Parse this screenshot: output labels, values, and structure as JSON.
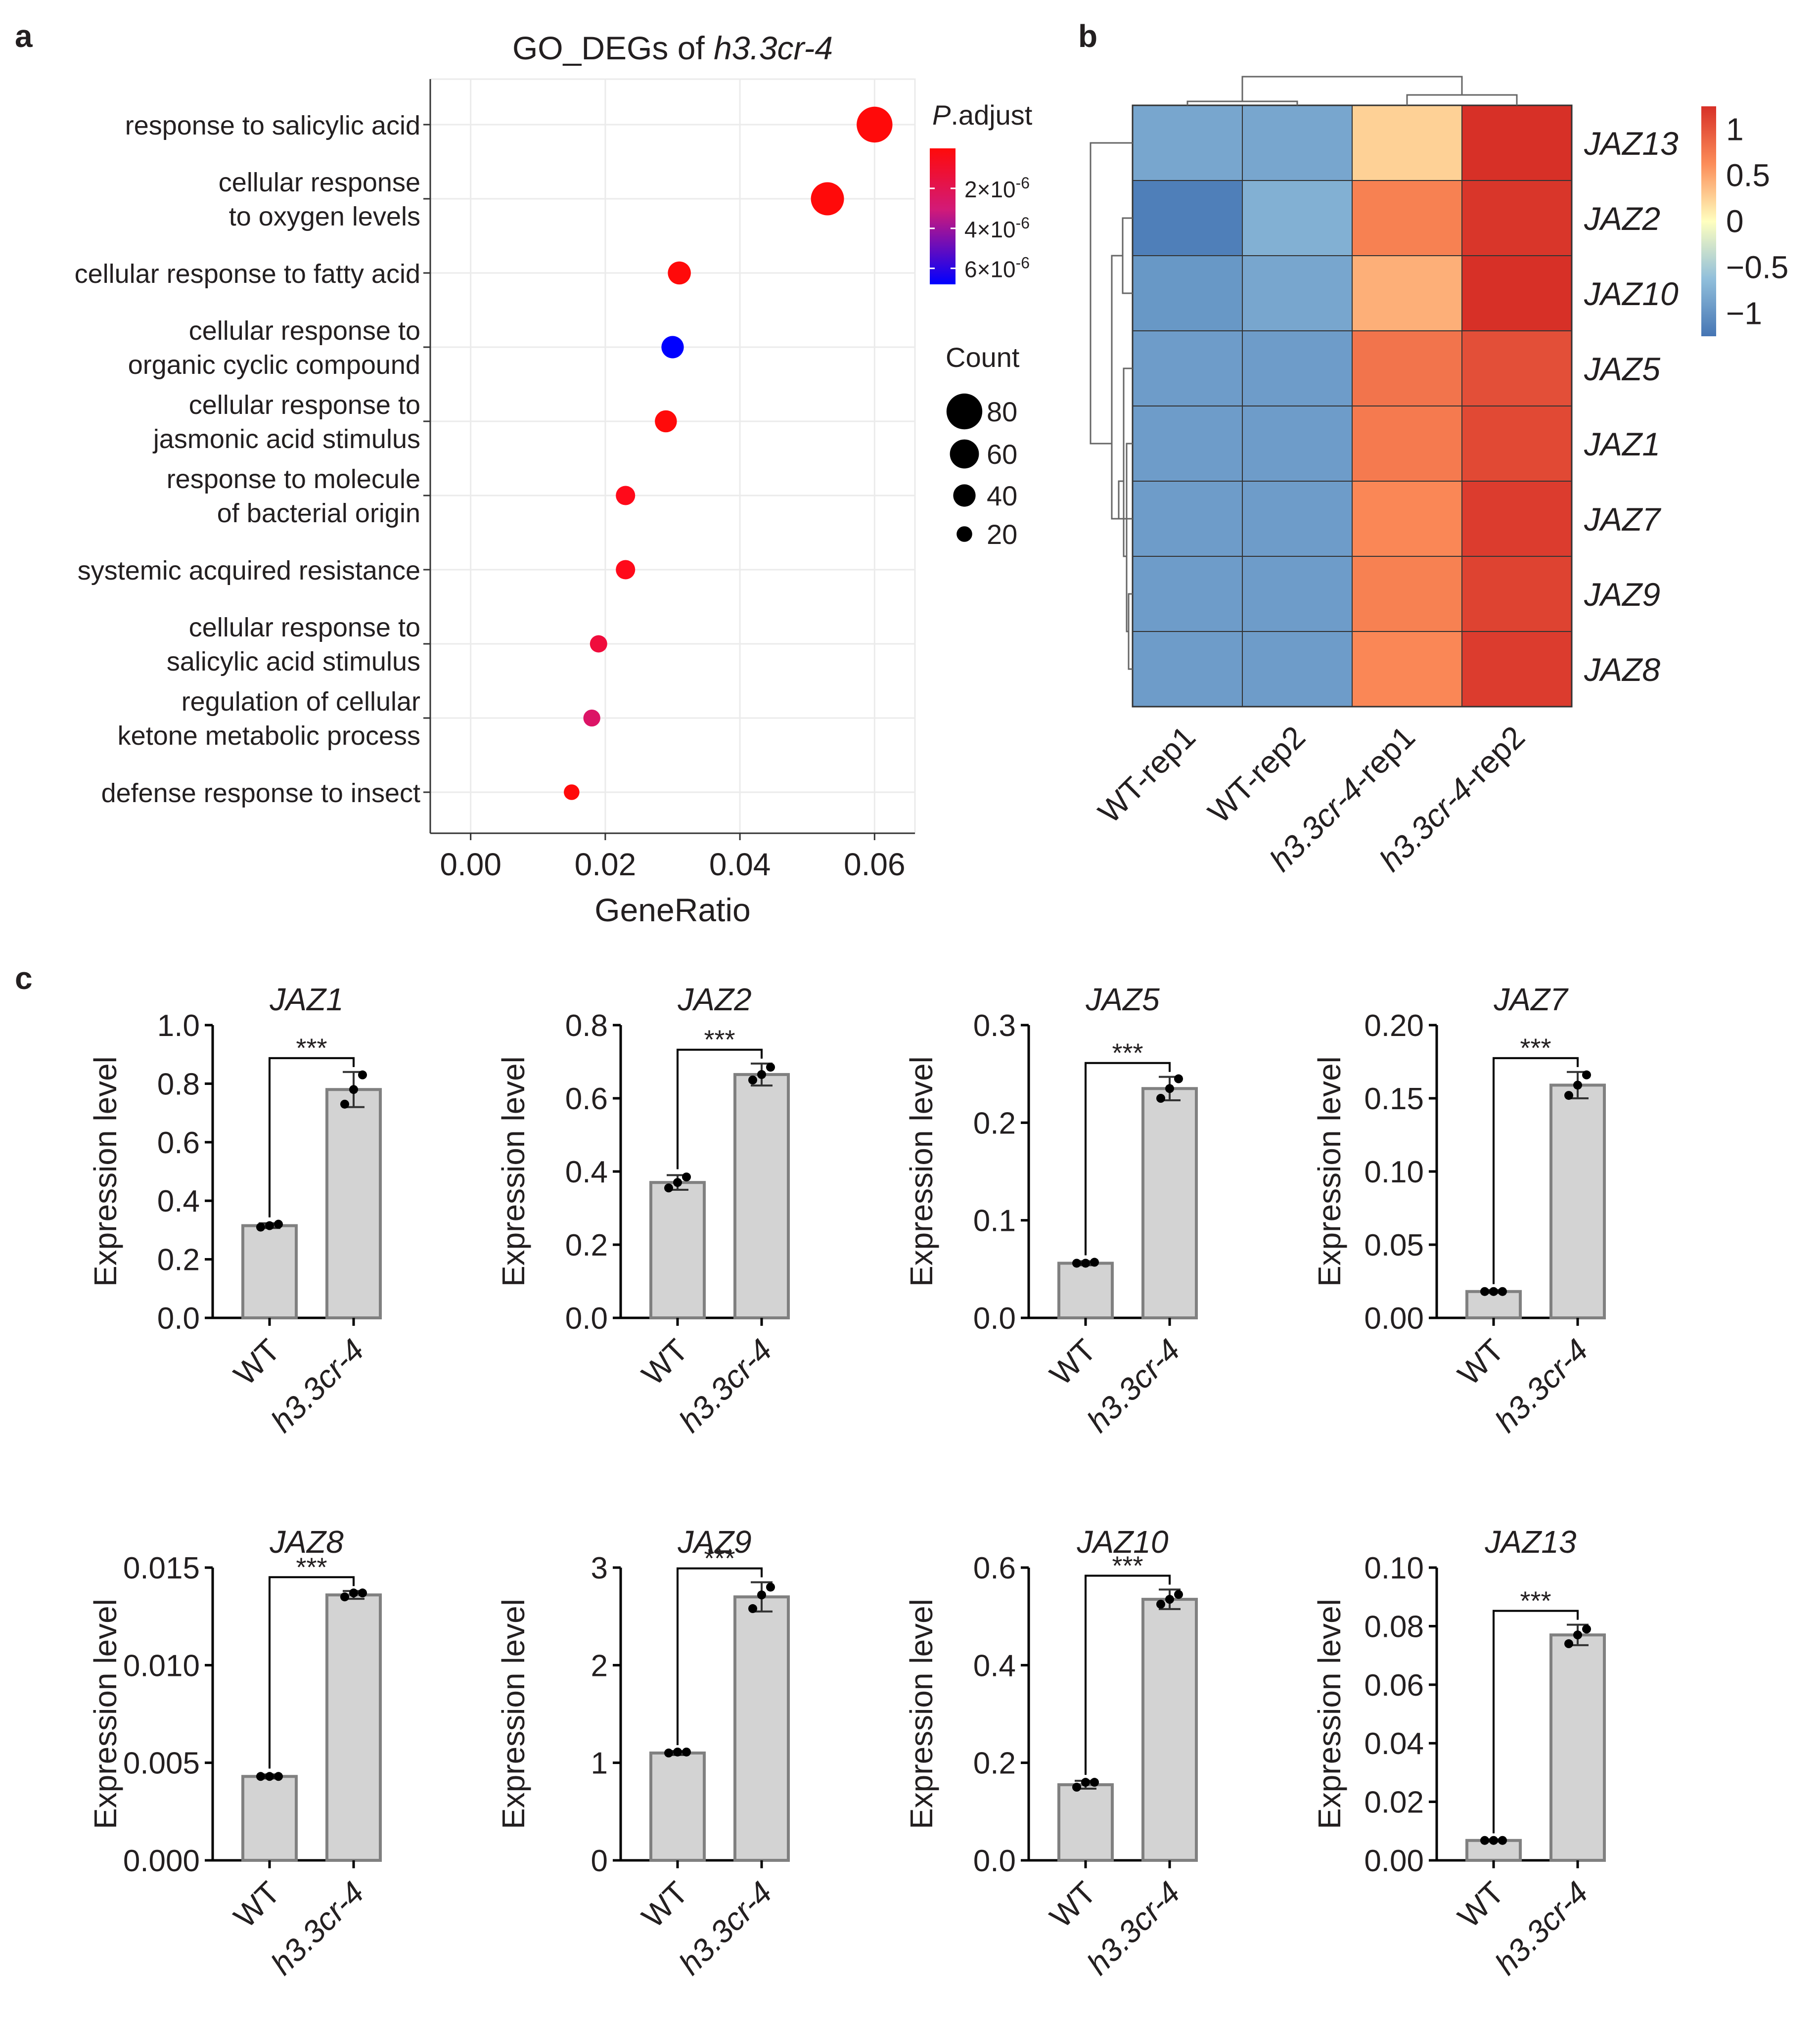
{
  "panel_labels": [
    "a",
    "b",
    "c"
  ],
  "chart_data": [
    {
      "panel": "a",
      "type": "scatter",
      "title_prefix": "GO_DEGs of ",
      "title_italic": "h3.3cr-4",
      "xlabel": "GeneRatio",
      "xlim": [
        -0.006,
        0.066
      ],
      "xticks": [
        "0.00",
        "0.02",
        "0.04",
        "0.06"
      ],
      "xtick_values": [
        0.0,
        0.02,
        0.04,
        0.06
      ],
      "grid": true,
      "legend_position": "right",
      "color_legend": {
        "title_italic": "P",
        "title_rest": ".adjust",
        "tick_bases": [
          "2×10",
          "4×10",
          "6×10"
        ],
        "tick_exp": "-6",
        "tick_values": [
          2e-06,
          4e-06,
          6e-06
        ],
        "colors": [
          "#ff0a0a",
          "#0000ff"
        ]
      },
      "size_legend": {
        "title": "Count",
        "labels": [
          "80",
          "60",
          "40",
          "20"
        ],
        "values": [
          80,
          60,
          40,
          20
        ]
      },
      "terms": [
        {
          "label": [
            "response to salicylic acid"
          ],
          "gene_ratio": 0.06,
          "count": 80,
          "p_adjust": 1e-07,
          "color": "#ff0a0a"
        },
        {
          "label": [
            "cellular response",
            "to oxygen levels"
          ],
          "gene_ratio": 0.053,
          "count": 72,
          "p_adjust": 1e-07,
          "color": "#ff0a0a"
        },
        {
          "label": [
            "cellular response to fatty acid"
          ],
          "gene_ratio": 0.031,
          "count": 42,
          "p_adjust": 2e-07,
          "color": "#ff0a0a"
        },
        {
          "label": [
            "cellular response to",
            "organic cyclic compound"
          ],
          "gene_ratio": 0.03,
          "count": 40,
          "p_adjust": 6.5e-06,
          "color": "#0000ff"
        },
        {
          "label": [
            "cellular response to",
            "jasmonic acid stimulus"
          ],
          "gene_ratio": 0.029,
          "count": 39,
          "p_adjust": 2e-07,
          "color": "#ff0a0a"
        },
        {
          "label": [
            "response to molecule",
            "of bacterial origin"
          ],
          "gene_ratio": 0.023,
          "count": 31,
          "p_adjust": 3e-07,
          "color": "#ff0a1a"
        },
        {
          "label": [
            "systemic acquired resistance"
          ],
          "gene_ratio": 0.023,
          "count": 31,
          "p_adjust": 3e-07,
          "color": "#ff0a1a"
        },
        {
          "label": [
            "cellular response to",
            "salicylic acid stimulus"
          ],
          "gene_ratio": 0.019,
          "count": 25,
          "p_adjust": 6e-07,
          "color": "#f00c3c"
        },
        {
          "label": [
            "regulation of cellular",
            "ketone metabolic process"
          ],
          "gene_ratio": 0.018,
          "count": 24,
          "p_adjust": 1.5e-06,
          "color": "#dc1466"
        },
        {
          "label": [
            "defense response to insect"
          ],
          "gene_ratio": 0.015,
          "count": 20,
          "p_adjust": 2e-07,
          "color": "#ff0a0a"
        }
      ]
    },
    {
      "panel": "b",
      "type": "heatmap",
      "columns": [
        {
          "italic": "",
          "rest": "WT-rep1"
        },
        {
          "italic": "",
          "rest": "WT-rep2"
        },
        {
          "italic": "h3.3cr-4",
          "rest": "-rep1"
        },
        {
          "italic": "h3.3cr-4",
          "rest": "-rep2"
        }
      ],
      "rows": [
        "JAZ13",
        "JAZ2",
        "JAZ10",
        "JAZ5",
        "JAZ1",
        "JAZ7",
        "JAZ9",
        "JAZ8"
      ],
      "values": [
        [
          -0.75,
          -0.75,
          0.2,
          1.35
        ],
        [
          -1.15,
          -0.65,
          0.6,
          1.2
        ],
        [
          -0.9,
          -0.75,
          0.35,
          1.3
        ],
        [
          -0.85,
          -0.85,
          0.7,
          1.0
        ],
        [
          -0.85,
          -0.85,
          0.65,
          1.05
        ],
        [
          -0.85,
          -0.85,
          0.55,
          1.15
        ],
        [
          -0.85,
          -0.85,
          0.6,
          1.1
        ],
        [
          -0.85,
          -0.85,
          0.55,
          1.15
        ]
      ],
      "colorbar": {
        "ticks": [
          "1",
          "0.5",
          "0",
          "−0.5",
          "−1"
        ],
        "tick_values": [
          1,
          0.5,
          0,
          -0.5,
          -1
        ],
        "range": [
          -1.25,
          1.25
        ]
      }
    },
    {
      "panel": "c",
      "type": "bar",
      "ylabel": "Expression level",
      "categories": [
        {
          "italic": "",
          "text": "WT"
        },
        {
          "italic": "h3.3cr-4",
          "text": ""
        }
      ],
      "significance": "***",
      "subplots": [
        {
          "gene": "JAZ1",
          "ylim": [
            0,
            1.0
          ],
          "yticks": [
            "0.0",
            "0.2",
            "0.4",
            "0.6",
            "0.8",
            "1.0"
          ],
          "values": [
            0.315,
            0.78
          ],
          "errors": [
            0.008,
            0.06
          ],
          "points": [
            [
              0.31,
              0.315,
              0.32
            ],
            [
              0.73,
              0.78,
              0.83
            ]
          ]
        },
        {
          "gene": "JAZ2",
          "ylim": [
            0,
            0.8
          ],
          "yticks": [
            "0.0",
            "0.2",
            "0.4",
            "0.6",
            "0.8"
          ],
          "values": [
            0.37,
            0.665
          ],
          "errors": [
            0.02,
            0.03
          ],
          "points": [
            [
              0.355,
              0.37,
              0.385
            ],
            [
              0.65,
              0.665,
              0.685
            ]
          ]
        },
        {
          "gene": "JAZ5",
          "ylim": [
            0,
            0.3
          ],
          "yticks": [
            "0.0",
            "0.1",
            "0.2",
            "0.3"
          ],
          "values": [
            0.056,
            0.235
          ],
          "errors": [
            0.002,
            0.012
          ],
          "points": [
            [
              0.056,
              0.056,
              0.057
            ],
            [
              0.225,
              0.235,
              0.245
            ]
          ]
        },
        {
          "gene": "JAZ7",
          "ylim": [
            0,
            0.2
          ],
          "yticks": [
            "0.00",
            "0.05",
            "0.10",
            "0.15",
            "0.20"
          ],
          "values": [
            0.018,
            0.159
          ],
          "errors": [
            0.001,
            0.009
          ],
          "points": [
            [
              0.018,
              0.018,
              0.018
            ],
            [
              0.152,
              0.159,
              0.166
            ]
          ]
        },
        {
          "gene": "JAZ8",
          "ylim": [
            0,
            0.015
          ],
          "yticks": [
            "0.000",
            "0.005",
            "0.010",
            "0.015"
          ],
          "values": [
            0.0043,
            0.0136
          ],
          "errors": [
            0.0001,
            0.0002
          ],
          "points": [
            [
              0.0043,
              0.0043,
              0.0043
            ],
            [
              0.0135,
              0.0137,
              0.0137
            ]
          ]
        },
        {
          "gene": "JAZ9",
          "ylim": [
            0,
            3
          ],
          "yticks": [
            "0",
            "1",
            "2",
            "3"
          ],
          "values": [
            1.1,
            2.7
          ],
          "errors": [
            0.02,
            0.15
          ],
          "points": [
            [
              1.1,
              1.11,
              1.11
            ],
            [
              2.58,
              2.72,
              2.8
            ]
          ]
        },
        {
          "gene": "JAZ10",
          "ylim": [
            0,
            0.6
          ],
          "yticks": [
            "0.0",
            "0.2",
            "0.4",
            "0.6"
          ],
          "values": [
            0.155,
            0.535
          ],
          "errors": [
            0.008,
            0.02
          ],
          "points": [
            [
              0.15,
              0.16,
              0.16
            ],
            [
              0.525,
              0.535,
              0.545
            ]
          ]
        },
        {
          "gene": "JAZ13",
          "ylim": [
            0,
            0.1
          ],
          "yticks": [
            "0.00",
            "0.02",
            "0.04",
            "0.06",
            "0.08",
            "0.10"
          ],
          "values": [
            0.0068,
            0.077
          ],
          "errors": [
            0.0004,
            0.0035
          ],
          "points": [
            [
              0.0068,
              0.0068,
              0.0068
            ],
            [
              0.074,
              0.077,
              0.079
            ]
          ]
        }
      ]
    }
  ]
}
